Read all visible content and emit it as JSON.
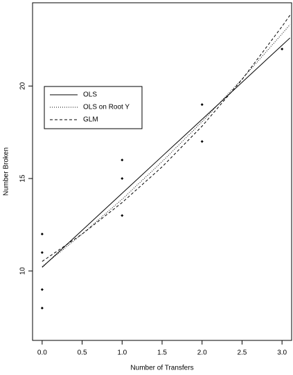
{
  "chart_data": {
    "type": "scatter",
    "xlabel": "Number of Transfers",
    "ylabel": "Number Broken",
    "xlim": [
      -0.12,
      3.12
    ],
    "ylim": [
      6.25,
      24.5
    ],
    "xticks": [
      {
        "value": 0,
        "label": "0.0"
      },
      0.5,
      {
        "value": 1,
        "label": "1.0"
      },
      1.5,
      {
        "value": 2,
        "label": "2.0"
      },
      2.5,
      {
        "value": 3,
        "label": "3.0"
      }
    ],
    "yticks": [
      10,
      15,
      20
    ],
    "points": {
      "color": "#000000",
      "x": [
        1,
        0,
        2,
        0,
        3,
        1,
        0,
        1,
        2,
        0
      ],
      "values": [
        16,
        9,
        17,
        12,
        22,
        13,
        8,
        15,
        19,
        11
      ]
    },
    "legend": "upper left",
    "series": [
      {
        "name": "OLS",
        "color": "#000000",
        "dash": "solid",
        "x": [
          0,
          0.5,
          1,
          1.5,
          2,
          2.5,
          3,
          3.1
        ],
        "values": [
          10.2,
          12.2,
          14.2,
          16.2,
          18.2,
          20.2,
          22.2,
          22.6
        ]
      },
      {
        "name": "OLS on Root Y",
        "color": "#000000",
        "dash": "dotted",
        "x": [
          0,
          0.5,
          1,
          1.5,
          2,
          2.5,
          3,
          3.1
        ],
        "values": [
          10.24,
          12.0,
          13.88,
          15.91,
          18.07,
          20.38,
          22.82,
          23.32
        ]
      },
      {
        "name": "GLM",
        "color": "#000000",
        "dash": "dashed",
        "x": [
          0,
          0.5,
          1,
          1.5,
          2,
          2.5,
          3,
          3.1
        ],
        "values": [
          10.52,
          12.0,
          13.7,
          15.63,
          17.83,
          20.35,
          23.22,
          23.83
        ]
      }
    ]
  }
}
